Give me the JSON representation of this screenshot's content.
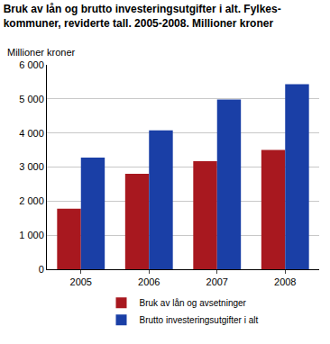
{
  "chart_data": {
    "type": "bar",
    "title": [
      "Bruk av lån og brutto investeringsutgifter i alt. Fylkes-",
      "kommuner, reviderte tall. 2005-2008. Millioner kroner"
    ],
    "ylabel": "Millioner kroner",
    "categories": [
      "2005",
      "2006",
      "2007",
      "2008"
    ],
    "series": [
      {
        "name": "Bruk av lån og avsetninger",
        "color": "#a8181f",
        "values": [
          1780,
          2800,
          3170,
          3500
        ]
      },
      {
        "name": "Brutto investeringsutgifter i alt",
        "color": "#1a3fa6",
        "values": [
          3280,
          4080,
          4980,
          5430
        ]
      }
    ],
    "ylim": [
      0,
      6000
    ],
    "yticks": [
      0,
      {
        "value": 1000,
        "label": "1 000"
      },
      {
        "value": 2000,
        "label": "2 000"
      },
      {
        "value": 3000,
        "label": "3 000"
      },
      {
        "value": 4000,
        "label": "4 000"
      },
      {
        "value": 5000,
        "label": "5 000"
      },
      {
        "value": 6000,
        "label": "6 000"
      }
    ],
    "grid": true,
    "legend": "bottom"
  }
}
